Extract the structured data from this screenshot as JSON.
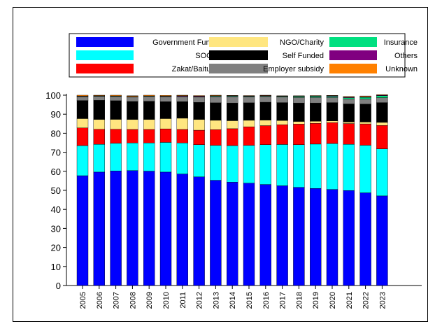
{
  "chart_data": {
    "type": "bar",
    "stacked": true,
    "title": "",
    "xlabel": "",
    "ylabel": "",
    "ylim": [
      0,
      100
    ],
    "yticks": [
      0,
      10,
      20,
      30,
      40,
      50,
      60,
      70,
      80,
      90,
      100
    ],
    "grid": false,
    "legend_position": "top",
    "categories": [
      "2005",
      "2006",
      "2007",
      "2008",
      "2009",
      "2010",
      "2011",
      "2012",
      "2013",
      "2014",
      "2015",
      "2016",
      "2017",
      "2018",
      "2019",
      "2020",
      "2021",
      "2022",
      "2023"
    ],
    "series": [
      {
        "name": "Government Funded",
        "color": "#0000ff",
        "values": [
          57.7,
          59.6,
          60.2,
          60.4,
          60.1,
          59.6,
          58.6,
          57.1,
          55.3,
          54.3,
          53.8,
          53.1,
          52.4,
          51.6,
          51.0,
          50.5,
          49.9,
          48.7,
          47.1
        ]
      },
      {
        "name": "SOCSO",
        "color": "#00ffff",
        "values": [
          15.8,
          14.6,
          14.5,
          14.5,
          14.8,
          15.6,
          16.3,
          16.9,
          18.3,
          19.2,
          19.8,
          20.9,
          21.7,
          22.4,
          23.3,
          24.1,
          24.3,
          25.0,
          24.7
        ]
      },
      {
        "name": "Zakat/Baitumal",
        "color": "#ff0000",
        "values": [
          9.3,
          7.9,
          7.4,
          7.1,
          7.1,
          7.1,
          7.1,
          7.6,
          8.3,
          8.9,
          9.8,
          10.0,
          10.4,
          10.8,
          10.9,
          11.0,
          10.9,
          11.2,
          12.3
        ]
      },
      {
        "name": "NGO/Charity",
        "color": "#ffe680",
        "values": [
          4.9,
          5.1,
          5.2,
          5.2,
          5.2,
          5.4,
          5.9,
          5.6,
          4.9,
          4.2,
          3.4,
          2.9,
          2.2,
          1.4,
          1.1,
          0.9,
          0.8,
          1.0,
          1.6
        ]
      },
      {
        "name": "Self Funded",
        "color": "#000000",
        "values": [
          9.5,
          10.1,
          9.8,
          9.5,
          9.6,
          8.9,
          8.7,
          9.0,
          9.2,
          9.3,
          9.2,
          9.4,
          9.4,
          9.7,
          9.6,
          9.6,
          9.5,
          9.4,
          10.4
        ]
      },
      {
        "name": "Employer subsidy",
        "color": "#808080",
        "values": [
          2.0,
          2.1,
          2.2,
          2.3,
          2.5,
          2.6,
          2.6,
          2.8,
          3.2,
          3.3,
          3.1,
          3.0,
          2.9,
          2.9,
          2.9,
          2.7,
          2.6,
          2.7,
          2.6
        ]
      },
      {
        "name": "Insurance",
        "color": "#00e080",
        "values": [
          0.2,
          0.2,
          0.2,
          0.2,
          0.2,
          0.2,
          0.2,
          0.2,
          0.3,
          0.3,
          0.3,
          0.3,
          0.3,
          0.5,
          0.6,
          0.6,
          0.7,
          0.9,
          1.0
        ]
      },
      {
        "name": "Others",
        "color": "#800080",
        "values": [
          0.1,
          0.1,
          0.1,
          0.1,
          0.1,
          0.1,
          0.3,
          0.3,
          0.2,
          0.2,
          0.2,
          0.2,
          0.2,
          0.2,
          0.2,
          0.3,
          0.3,
          0.3,
          0.3
        ]
      },
      {
        "name": "Unknown",
        "color": "#ff8000",
        "values": [
          0.5,
          0.3,
          0.4,
          0.4,
          0.4,
          0.4,
          0.3,
          0.3,
          0.3,
          0.2,
          0.2,
          0.2,
          0.2,
          0.2,
          0.2,
          0.2,
          0.3,
          0.4,
          0.3
        ]
      }
    ]
  }
}
